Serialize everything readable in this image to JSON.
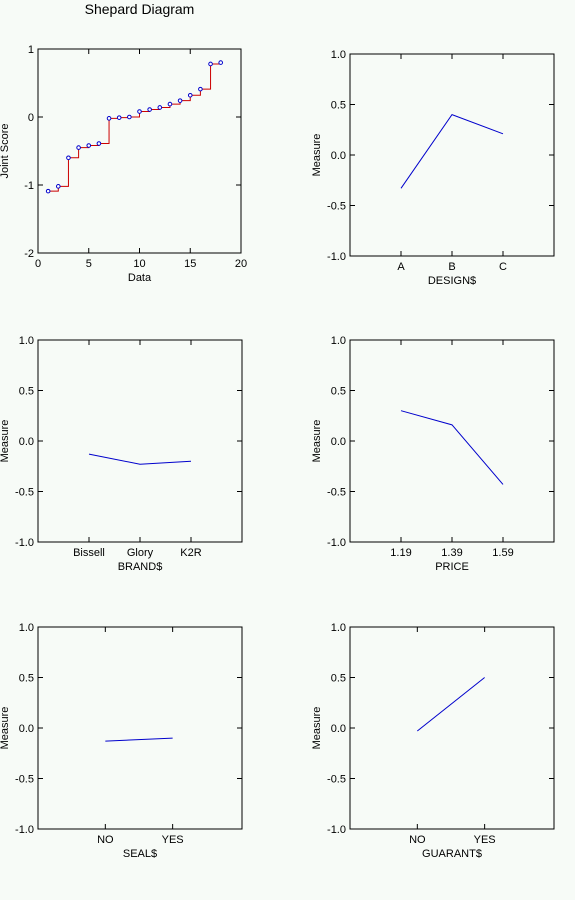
{
  "chart_data": [
    {
      "type": "line",
      "title": "Shepard Diagram",
      "xlabel": "Data",
      "ylabel": "Joint Score",
      "xlim": [
        0,
        20
      ],
      "ylim": [
        -2,
        1
      ],
      "xticks": [
        "0",
        "5",
        "10",
        "15",
        "20"
      ],
      "yticks": [
        "-2",
        "-1",
        "0",
        "1"
      ],
      "points": [
        {
          "x": 1,
          "y": -1.09
        },
        {
          "x": 2,
          "y": -1.02
        },
        {
          "x": 3,
          "y": -0.6
        },
        {
          "x": 4,
          "y": -0.45
        },
        {
          "x": 5,
          "y": -0.42
        },
        {
          "x": 6,
          "y": -0.39
        },
        {
          "x": 7,
          "y": -0.02
        },
        {
          "x": 8,
          "y": -0.01
        },
        {
          "x": 9,
          "y": 0.0
        },
        {
          "x": 10,
          "y": 0.08
        },
        {
          "x": 11,
          "y": 0.11
        },
        {
          "x": 12,
          "y": 0.14
        },
        {
          "x": 13,
          "y": 0.19
        },
        {
          "x": 14,
          "y": 0.24
        },
        {
          "x": 15,
          "y": 0.32
        },
        {
          "x": 16,
          "y": 0.41
        },
        {
          "x": 17,
          "y": 0.78
        },
        {
          "x": 18,
          "y": 0.8
        }
      ],
      "step_line_color": "#cc0000",
      "point_color": "#0000cc"
    },
    {
      "type": "line",
      "xlabel": "DESIGN$",
      "ylabel": "Measure",
      "categories": [
        "A",
        "B",
        "C"
      ],
      "values": [
        -0.33,
        0.4,
        0.21
      ],
      "ylim": [
        -1.0,
        1.0
      ],
      "yticks": [
        "-1.0",
        "-0.5",
        "0.0",
        "0.5",
        "1.0"
      ],
      "line_color": "#0000cc"
    },
    {
      "type": "line",
      "xlabel": "BRAND$",
      "ylabel": "Measure",
      "categories": [
        "Bissell",
        "Glory",
        "K2R"
      ],
      "values": [
        -0.13,
        -0.23,
        -0.2
      ],
      "ylim": [
        -1.0,
        1.0
      ],
      "yticks": [
        "-1.0",
        "-0.5",
        "0.0",
        "0.5",
        "1.0"
      ],
      "line_color": "#0000cc"
    },
    {
      "type": "line",
      "xlabel": "PRICE",
      "ylabel": "Measure",
      "categories": [
        "1.19",
        "1.39",
        "1.59"
      ],
      "values": [
        0.3,
        0.16,
        -0.43
      ],
      "ylim": [
        -1.0,
        1.0
      ],
      "yticks": [
        "-1.0",
        "-0.5",
        "0.0",
        "0.5",
        "1.0"
      ],
      "line_color": "#0000cc"
    },
    {
      "type": "line",
      "xlabel": "SEAL$",
      "ylabel": "Measure",
      "categories": [
        "NO",
        "YES"
      ],
      "values": [
        -0.13,
        -0.1
      ],
      "ylim": [
        -1.0,
        1.0
      ],
      "yticks": [
        "-1.0",
        "-0.5",
        "0.0",
        "0.5",
        "1.0"
      ],
      "line_color": "#0000cc"
    },
    {
      "type": "line",
      "xlabel": "GUARANT$",
      "ylabel": "Measure",
      "categories": [
        "NO",
        "YES"
      ],
      "values": [
        -0.03,
        0.5
      ],
      "ylim": [
        -1.0,
        1.0
      ],
      "yticks": [
        "-1.0",
        "-0.5",
        "0.0",
        "0.5",
        "1.0"
      ],
      "line_color": "#0000cc"
    }
  ]
}
